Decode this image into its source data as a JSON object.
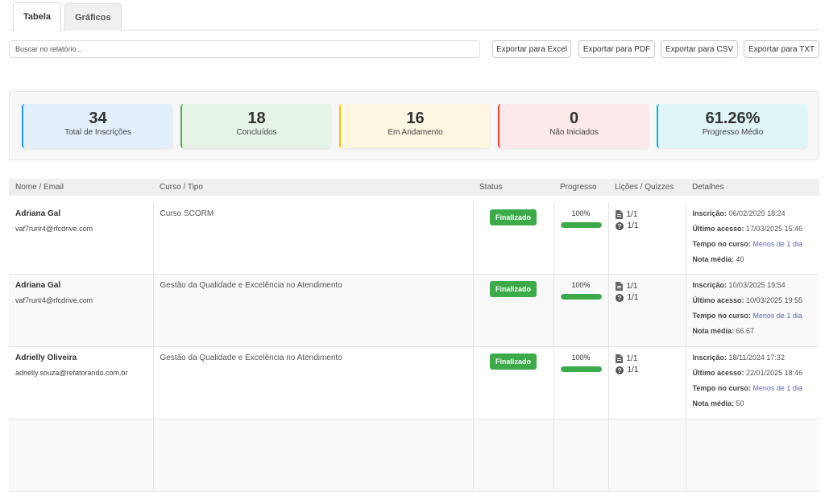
{
  "tabs": [
    {
      "label": "Tabela",
      "active": true
    },
    {
      "label": "Gráficos",
      "active": false
    }
  ],
  "search": {
    "placeholder": "Buscar no relatório...",
    "value": ""
  },
  "export_buttons": [
    "Exportar para Excel",
    "Exportar para PDF",
    "Exportar para CSV",
    "Exportar para TXT"
  ],
  "stats": [
    {
      "value": "34",
      "label": "Total de Inscrições",
      "bg": "#e3f0fc",
      "accent": "#2196f3"
    },
    {
      "value": "18",
      "label": "Concluídos",
      "bg": "#e6f4e7",
      "accent": "#4caf50"
    },
    {
      "value": "16",
      "label": "Em Andamento",
      "bg": "#fdf6e0",
      "accent": "#ffc107"
    },
    {
      "value": "0",
      "label": "Não Iniciados",
      "bg": "#fde8ea",
      "accent": "#f44336"
    },
    {
      "value": "61.26%",
      "label": "Progresso Médio",
      "bg": "#e0f5f8",
      "accent": "#00bcd4"
    }
  ],
  "table": {
    "headers": [
      "Nome / Email",
      "Curso / Tipo",
      "Status",
      "Progresso",
      "Lições / Quizzes",
      "Detalhes"
    ],
    "detail_labels": {
      "enroll": "Inscrição:",
      "last": "Último acesso:",
      "time": "Tempo no curso:",
      "grade": "Nota média:"
    },
    "rows": [
      {
        "name": "Adriana Gal",
        "email": "vaf7rurir4@rfcdrive.com",
        "course": "Curso SCORM",
        "status": "Finalizado",
        "progress": "100%",
        "progress_value": 100,
        "lessons": "1/1",
        "quizzes": "1/1",
        "enroll": "06/02/2025 18:24",
        "last": "17/03/2025 15:46",
        "time": "Menos de 1 dia",
        "grade": "40"
      },
      {
        "name": "Adriana Gal",
        "email": "vaf7rurir4@rfcdrive.com",
        "course": "Gestão da Qualidade e Excelência no Atendimento",
        "status": "Finalizado",
        "progress": "100%",
        "progress_value": 100,
        "lessons": "1/1",
        "quizzes": "1/1",
        "enroll": "10/03/2025 19:54",
        "last": "10/03/2025 19:55",
        "time": "Menos de 1 dia",
        "grade": "66.67"
      },
      {
        "name": "Adrielly Oliveira",
        "email": "adrielly.souza@refatorando.com.br",
        "course": "Gestão da Qualidade e Excelência no Atendimento",
        "status": "Finalizado",
        "progress": "100%",
        "progress_value": 100,
        "lessons": "1/1",
        "quizzes": "1/1",
        "enroll": "18/11/2024 17:32",
        "last": "22/01/2025 18:46",
        "time": "Menos de 1 dia",
        "grade": "50"
      }
    ]
  }
}
